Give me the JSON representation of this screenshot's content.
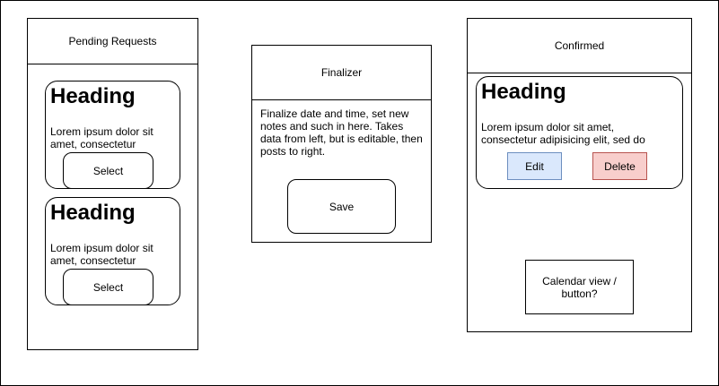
{
  "pending": {
    "title": "Pending Requests",
    "cards": [
      {
        "heading": "Heading",
        "text": "Lorem ipsum dolor sit amet, consectetur",
        "button": "Select"
      },
      {
        "heading": "Heading",
        "text": "Lorem ipsum dolor sit amet, consectetur",
        "button": "Select"
      }
    ]
  },
  "finalizer": {
    "title": "Finalizer",
    "description": "Finalize date and time, set new notes and such in here. Takes data from left, but is editable, then posts to right.",
    "save": "Save"
  },
  "confirmed": {
    "title": "Confirmed",
    "card": {
      "heading": "Heading",
      "text": "Lorem ipsum dolor sit amet, consectetur adipisicing elit, sed do",
      "edit": "Edit",
      "delete": "Delete"
    },
    "calendar": "Calendar view / button?"
  },
  "colors": {
    "edit_fill": "#dae8fc",
    "edit_stroke": "#6c8ebf",
    "delete_fill": "#f8cecc",
    "delete_stroke": "#b85450"
  }
}
